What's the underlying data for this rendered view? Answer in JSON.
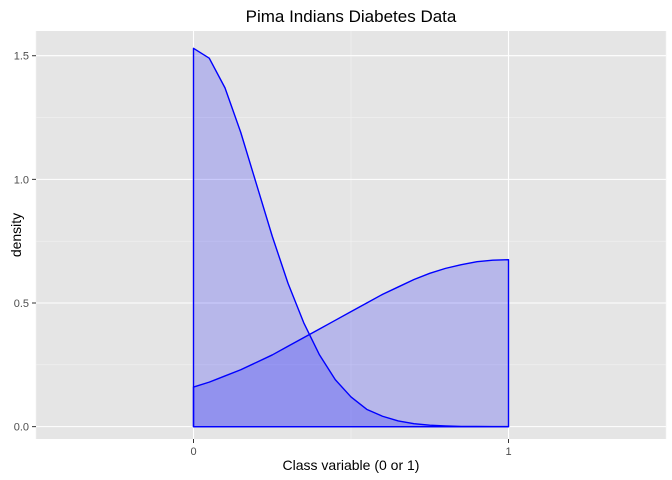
{
  "chart_data": {
    "type": "area",
    "title": "Pima Indians Diabetes Data",
    "xlabel": "Class variable (0 or 1)",
    "ylabel": "density",
    "xlim": [
      -0.5,
      1.5
    ],
    "ylim": [
      -0.05,
      1.6
    ],
    "x_ticks": [
      0,
      1
    ],
    "x_tick_labels": [
      "0",
      "1"
    ],
    "y_ticks": [
      0.0,
      0.5,
      1.0,
      1.5
    ],
    "y_tick_labels": [
      "0.0",
      "0.5",
      "1.0",
      "1.5"
    ],
    "grid": true,
    "legend": "none",
    "fill_color": "#0000ff",
    "fill_alpha": 0.2,
    "line_color": "#0000ff",
    "panel_background": "#e5e5e5",
    "series": [
      {
        "x": [
          0.0,
          0.05,
          0.1,
          0.15,
          0.2,
          0.25,
          0.3,
          0.35,
          0.4,
          0.45,
          0.5,
          0.55,
          0.6,
          0.65,
          0.7,
          0.75,
          0.8,
          0.85,
          0.9,
          0.95,
          1.0
        ],
        "values": [
          1.53,
          1.49,
          1.37,
          1.19,
          0.98,
          0.77,
          0.58,
          0.42,
          0.29,
          0.19,
          0.12,
          0.07,
          0.042,
          0.023,
          0.012,
          0.006,
          0.003,
          0.001,
          0.0005,
          0.0002,
          0.0001
        ]
      },
      {
        "x": [
          0.0,
          0.05,
          0.1,
          0.15,
          0.2,
          0.25,
          0.3,
          0.35,
          0.4,
          0.45,
          0.5,
          0.55,
          0.6,
          0.65,
          0.7,
          0.75,
          0.8,
          0.85,
          0.9,
          0.95,
          1.0
        ],
        "values": [
          0.16,
          0.18,
          0.205,
          0.23,
          0.26,
          0.29,
          0.325,
          0.36,
          0.395,
          0.43,
          0.465,
          0.5,
          0.535,
          0.565,
          0.595,
          0.62,
          0.64,
          0.655,
          0.667,
          0.673,
          0.675
        ]
      }
    ]
  }
}
